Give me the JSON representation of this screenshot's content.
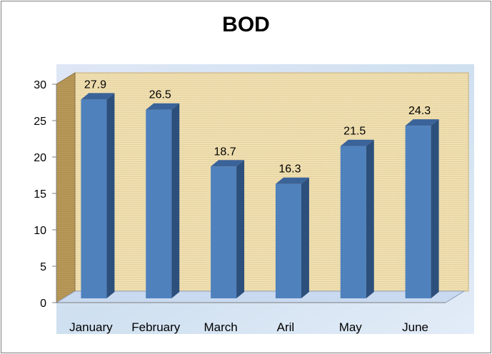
{
  "chart_data": {
    "type": "bar",
    "title": "BOD",
    "xlabel": "",
    "ylabel": "",
    "categories": [
      "January",
      "February",
      "March",
      "Aril",
      "May",
      "June"
    ],
    "values": [
      27.9,
      26.5,
      18.7,
      16.3,
      21.5,
      24.3
    ],
    "data_labels": [
      "27.9",
      "26.5",
      "18.7",
      "16.3",
      "21.5",
      "24.3"
    ],
    "ylim": [
      0,
      30
    ],
    "yticks": [
      0,
      5,
      10,
      15,
      20,
      25,
      30
    ],
    "grid": false,
    "legend": "none",
    "style": "3d-column",
    "colors": {
      "bar_front": "#4f81bd",
      "bar_side": "#2c4f7c",
      "bar_top": "#3a6399",
      "wall": "#f1e2b6",
      "floor": "#c9d9ef",
      "background": "#d8e6f5"
    }
  }
}
